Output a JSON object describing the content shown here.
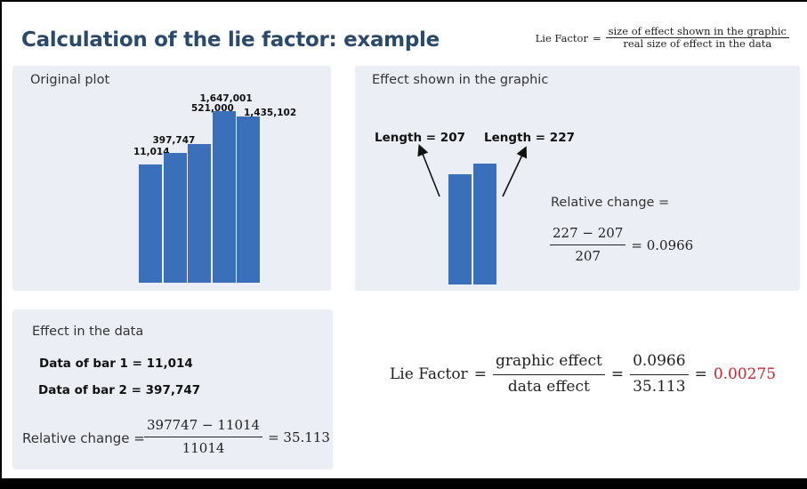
{
  "title": "Calculation of the lie factor: example",
  "definition": {
    "lhs": "Lie Factor",
    "eq": "=",
    "numerator": "size of effect shown in the graphic",
    "denominator": "real size of effect in the data"
  },
  "original_plot": {
    "heading": "Original plot",
    "chart_data": {
      "type": "bar",
      "title": "",
      "categories": [
        "",
        "",
        "",
        "",
        ""
      ],
      "values": [
        11014,
        397747,
        521000,
        1647001,
        1435102
      ],
      "data_labels": [
        "11,014",
        "397,747",
        "521,000",
        "1,647,001",
        "1,435,102"
      ],
      "bar_color": "#3a6fba"
    }
  },
  "graphic_effect": {
    "heading": "Effect shown in the graphic",
    "length1_label": "Length = 207",
    "length2_label": "Length = 227",
    "length1": 207,
    "length2": 227,
    "relative_change_label": "Relative change =",
    "numerator": "227 − 207",
    "denominator": "207",
    "result": "= 0.0966"
  },
  "data_effect": {
    "heading": "Effect in the data",
    "bar1": "Data of bar 1 = 11,014",
    "bar2": "Data of bar 2 = 397,747",
    "relative_change_label": "Relative change =",
    "numerator": "397747 − 11014",
    "denominator": "11014",
    "result": "= 35.113"
  },
  "lie_factor_calc": {
    "lhs": "Lie Factor",
    "eq1": "=",
    "num1": "graphic effect",
    "den1": "data effect",
    "eq2": "=",
    "num2": "0.0966",
    "den2": "35.113",
    "eq3": "=",
    "result": "0.00275",
    "result_color": "#c0282d"
  }
}
